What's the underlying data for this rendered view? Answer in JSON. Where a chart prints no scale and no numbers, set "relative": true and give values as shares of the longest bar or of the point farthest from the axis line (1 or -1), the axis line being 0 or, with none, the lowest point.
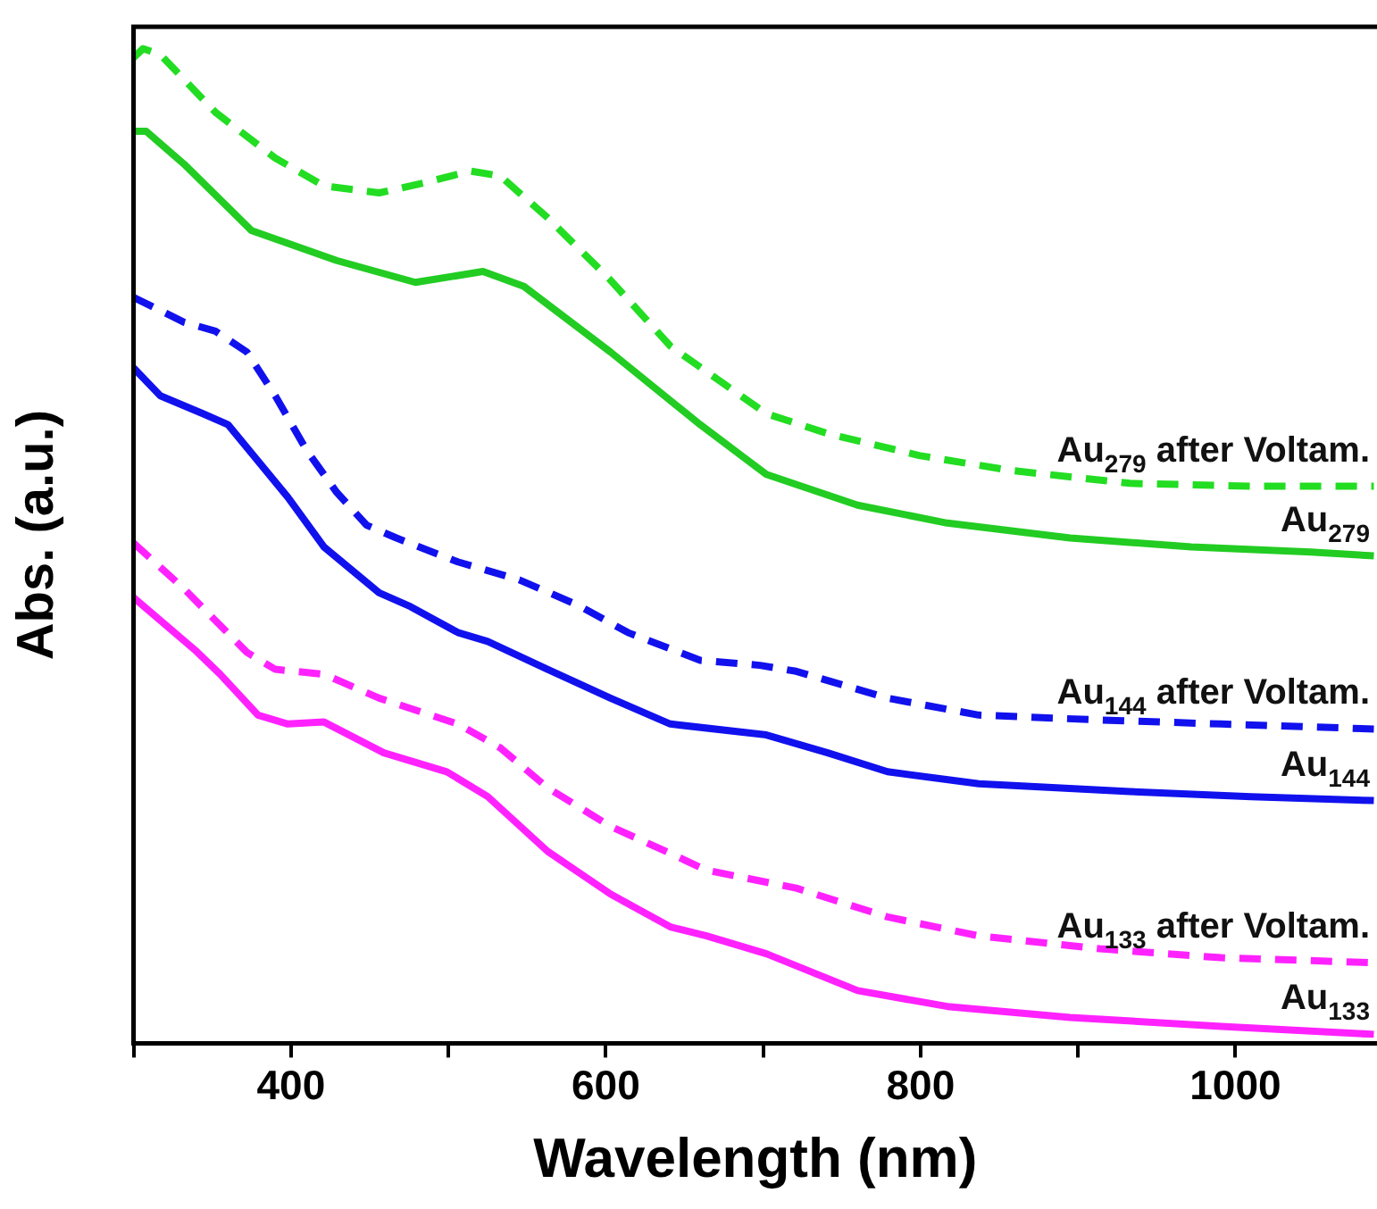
{
  "chart_data": {
    "type": "line",
    "xlabel": "Wavelength (nm)",
    "ylabel": "Abs. (a.u.)",
    "relative": true,
    "legend": false,
    "grid": false,
    "marker": "none",
    "xlim": [
      300,
      1090
    ],
    "xticks": [
      {
        "value": 300,
        "label": null
      },
      400,
      {
        "value": 500,
        "label": null
      },
      600,
      {
        "value": 700,
        "label": null
      },
      800,
      {
        "value": 900,
        "label": null
      },
      1000
    ],
    "series": [
      {
        "name": "Au$_{279}$ after Voltam.",
        "color": "#22dd22",
        "line_style": "dashed",
        "x": [
          300,
          306,
          317,
          352,
          390,
          421,
          456,
          487,
          514,
          533,
          563,
          602,
          641,
          702,
          741,
          799,
          857,
          933,
          1010,
          1088
        ],
        "values": [
          0.991,
          1,
          0.994,
          0.936,
          0.89,
          0.862,
          0.855,
          0.866,
          0.877,
          0.872,
          0.83,
          0.769,
          0.701,
          0.633,
          0.613,
          0.591,
          0.576,
          0.563,
          0.56,
          0.56
        ]
      },
      {
        "name": "Au$_{279}$",
        "color": "#22cc22",
        "line_style": "solid",
        "x": [
          300,
          308,
          332,
          375,
          429,
          479,
          522,
          548,
          603,
          660,
          702,
          760,
          817,
          895,
          972,
          1048,
          1088
        ],
        "values": [
          0.917,
          0.917,
          0.884,
          0.817,
          0.787,
          0.765,
          0.776,
          0.761,
          0.695,
          0.622,
          0.572,
          0.541,
          0.523,
          0.508,
          0.499,
          0.494,
          0.49
        ]
      },
      {
        "name": "Au$_{144}$ after Voltam.",
        "color": "#1111ee",
        "line_style": "dashed",
        "x": [
          300,
          332,
          352,
          372,
          390,
          410,
          429,
          448,
          467,
          506,
          545,
          583,
          614,
          660,
          698,
          721,
          779,
          837,
          914,
          991,
          1088
        ],
        "values": [
          0.75,
          0.725,
          0.716,
          0.695,
          0.651,
          0.596,
          0.554,
          0.521,
          0.508,
          0.484,
          0.466,
          0.44,
          0.413,
          0.385,
          0.38,
          0.374,
          0.347,
          0.33,
          0.325,
          0.321,
          0.316
        ]
      },
      {
        "name": "Au$_{144}$",
        "color": "#1111ee",
        "line_style": "solid",
        "x": [
          300,
          317,
          344,
          360,
          398,
          421,
          456,
          476,
          506,
          525,
          563,
          603,
          641,
          702,
          741,
          779,
          837,
          933,
          1010,
          1088
        ],
        "values": [
          0.679,
          0.651,
          0.633,
          0.622,
          0.549,
          0.499,
          0.453,
          0.439,
          0.413,
          0.404,
          0.376,
          0.347,
          0.321,
          0.31,
          0.292,
          0.273,
          0.261,
          0.253,
          0.248,
          0.244
        ]
      },
      {
        "name": "Au$_{133}$ after Voltam.",
        "color": "#ff22ff",
        "line_style": "dashed",
        "x": [
          300,
          332,
          372,
          390,
          421,
          456,
          506,
          533,
          563,
          603,
          641,
          664,
          721,
          779,
          837,
          914,
          991,
          1088
        ],
        "values": [
          0.503,
          0.457,
          0.393,
          0.376,
          0.371,
          0.347,
          0.321,
          0.297,
          0.257,
          0.218,
          0.191,
          0.174,
          0.156,
          0.127,
          0.108,
          0.095,
          0.086,
          0.081
        ]
      },
      {
        "name": "Au$_{133}$",
        "color": "#ff22ff",
        "line_style": "solid",
        "x": [
          300,
          340,
          355,
          379,
          398,
          421,
          459,
          499,
          525,
          563,
          603,
          641,
          664,
          702,
          760,
          817,
          895,
          991,
          1088
        ],
        "values": [
          0.448,
          0.394,
          0.371,
          0.33,
          0.321,
          0.323,
          0.292,
          0.273,
          0.248,
          0.193,
          0.15,
          0.117,
          0.108,
          0.09,
          0.053,
          0.037,
          0.026,
          0.017,
          0.009
        ]
      }
    ]
  }
}
